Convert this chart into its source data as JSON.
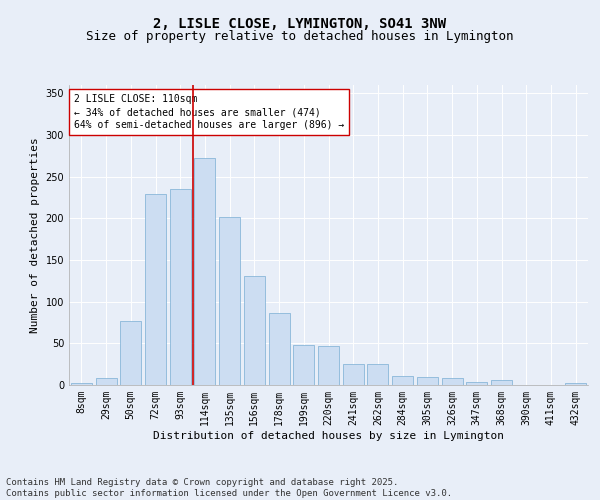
{
  "title": "2, LISLE CLOSE, LYMINGTON, SO41 3NW",
  "subtitle": "Size of property relative to detached houses in Lymington",
  "xlabel": "Distribution of detached houses by size in Lymington",
  "ylabel": "Number of detached properties",
  "categories": [
    "8sqm",
    "29sqm",
    "50sqm",
    "72sqm",
    "93sqm",
    "114sqm",
    "135sqm",
    "156sqm",
    "178sqm",
    "199sqm",
    "220sqm",
    "241sqm",
    "262sqm",
    "284sqm",
    "305sqm",
    "326sqm",
    "347sqm",
    "368sqm",
    "390sqm",
    "411sqm",
    "432sqm"
  ],
  "values": [
    2,
    8,
    77,
    229,
    235,
    272,
    202,
    131,
    87,
    48,
    47,
    25,
    25,
    11,
    10,
    8,
    4,
    6,
    0,
    0,
    3
  ],
  "bar_color": "#ccddf2",
  "bar_edge_color": "#7aadd4",
  "vline_x_index": 4.5,
  "vline_color": "#cc0000",
  "annotation_text": "2 LISLE CLOSE: 110sqm\n← 34% of detached houses are smaller (474)\n64% of semi-detached houses are larger (896) →",
  "annotation_box_color": "white",
  "annotation_box_edge_color": "#cc0000",
  "ylim": [
    0,
    360
  ],
  "yticks": [
    0,
    50,
    100,
    150,
    200,
    250,
    300,
    350
  ],
  "bg_color": "#e8eef8",
  "plot_bg_color": "#e8eef8",
  "footer": "Contains HM Land Registry data © Crown copyright and database right 2025.\nContains public sector information licensed under the Open Government Licence v3.0.",
  "title_fontsize": 10,
  "subtitle_fontsize": 9,
  "xlabel_fontsize": 8,
  "ylabel_fontsize": 8,
  "tick_fontsize": 7,
  "footer_fontsize": 6.5,
  "annot_fontsize": 7
}
